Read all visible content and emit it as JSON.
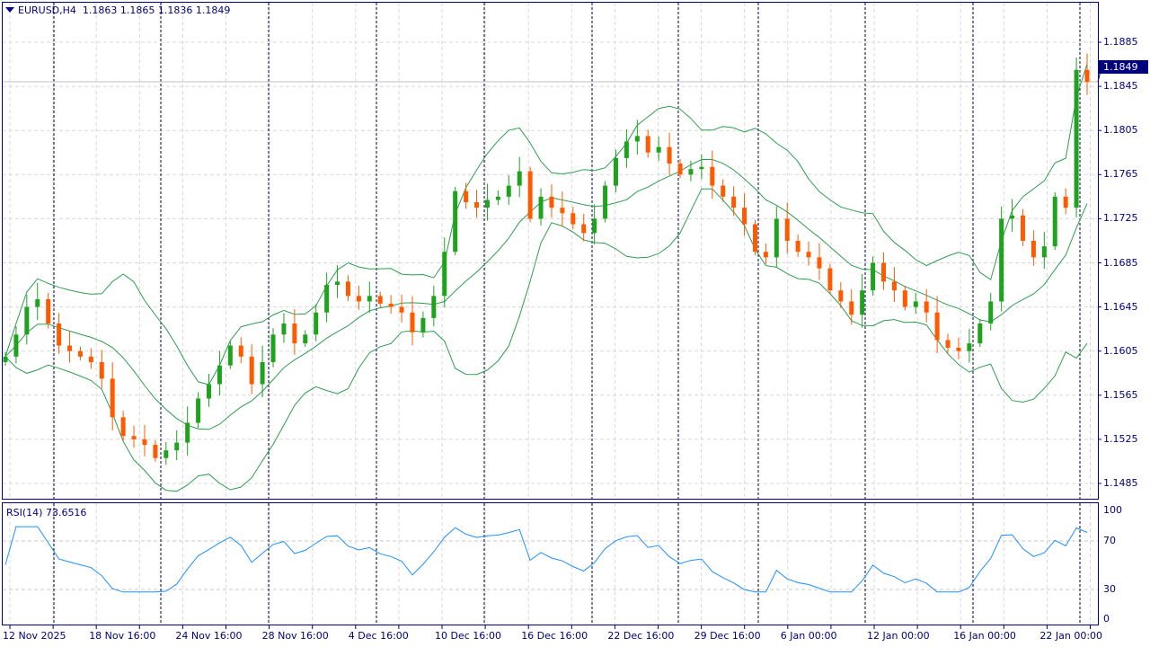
{
  "header": {
    "symbol": "EURUSD,H4",
    "open": "1.1863",
    "high": "1.1865",
    "low": "1.1836",
    "close": "1.1849",
    "menu_icon": "triangle-down-icon"
  },
  "price_axis": {
    "labels": [
      "1.1885",
      "1.1845",
      "1.1805",
      "1.1765",
      "1.1725",
      "1.1685",
      "1.1645",
      "1.1605",
      "1.1565",
      "1.1525",
      "1.1485"
    ],
    "current_price": "1.1849"
  },
  "rsi": {
    "title": "RSI(14) 73.6516",
    "levels": [
      "100",
      "70",
      "30",
      "0"
    ]
  },
  "time_axis": {
    "labels": [
      "12 Nov 2025",
      "18 Nov 16:00",
      "24 Nov 16:00",
      "28 Nov 16:00",
      "4 Dec 16:00",
      "10 Dec 16:00",
      "16 Dec 16:00",
      "22 Dec 16:00",
      "29 Dec 16:00",
      "6 Jan 00:00",
      "12 Jan 00:00",
      "16 Jan 00:00",
      "22 Jan 00:00"
    ]
  },
  "colors": {
    "bull": "#1fa31f",
    "bear": "#ff5a00",
    "bands": "#2e9d50",
    "rsi": "#1e90ff",
    "frame": "#00007f"
  },
  "chart_data": {
    "type": "candlestick",
    "price_range": [
      1.1465,
      1.1915
    ],
    "closes": [
      1.16,
      1.162,
      1.1645,
      1.1652,
      1.163,
      1.161,
      1.1605,
      1.16,
      1.1595,
      1.158,
      1.1545,
      1.1528,
      1.1525,
      1.152,
      1.1508,
      1.1515,
      1.1522,
      1.154,
      1.1562,
      1.1575,
      1.1592,
      1.161,
      1.16,
      1.1575,
      1.1595,
      1.162,
      1.163,
      1.1612,
      1.162,
      1.164,
      1.1665,
      1.1668,
      1.1655,
      1.165,
      1.1655,
      1.1648,
      1.1645,
      1.164,
      1.1622,
      1.1635,
      1.1655,
      1.1695,
      1.175,
      1.174,
      1.1735,
      1.1742,
      1.1745,
      1.1755,
      1.1768,
      1.1725,
      1.1745,
      1.1735,
      1.173,
      1.172,
      1.1712,
      1.1725,
      1.1755,
      1.178,
      1.1795,
      1.18,
      1.1785,
      1.179,
      1.1775,
      1.1765,
      1.177,
      1.1772,
      1.1755,
      1.1745,
      1.1735,
      1.172,
      1.1695,
      1.169,
      1.1725,
      1.1705,
      1.1695,
      1.169,
      1.168,
      1.166,
      1.165,
      1.1638,
      1.166,
      1.1685,
      1.1668,
      1.166,
      1.1645,
      1.165,
      1.164,
      1.1615,
      1.1608,
      1.1605,
      1.1612,
      1.163,
      1.165,
      1.1725,
      1.1728,
      1.1705,
      1.169,
      1.17,
      1.1745,
      1.1735,
      1.186,
      1.1849
    ],
    "indicators": [
      "Bollinger Bands",
      "RSI(14)"
    ]
  }
}
